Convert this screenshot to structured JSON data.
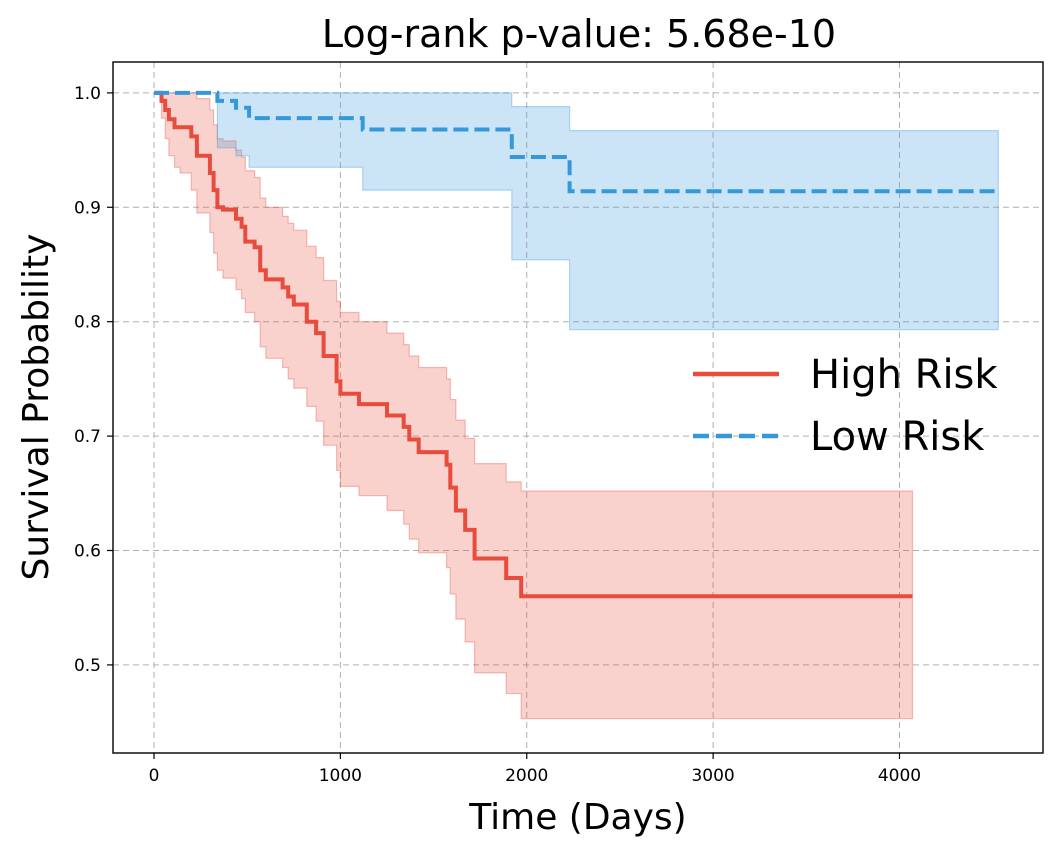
{
  "chart_data": {
    "type": "line",
    "title": "Log-rank p-value: 5.68e-10",
    "xlabel": "Time (Days)",
    "ylabel": "Survival Probability",
    "xlim": [
      -220,
      4770
    ],
    "ylim": [
      0.423,
      1.027
    ],
    "xticks": [
      0,
      1000,
      2000,
      3000,
      4000
    ],
    "yticks": [
      0.5,
      0.6,
      0.7,
      0.8,
      0.9,
      1.0
    ],
    "xtick_labels": [
      "0",
      "1000",
      "2000",
      "3000",
      "4000"
    ],
    "ytick_labels": [
      "0.5",
      "0.6",
      "0.7",
      "0.8",
      "0.9",
      "1.0"
    ],
    "grid": true,
    "legend_position": "center-right",
    "series": [
      {
        "name": "High Risk",
        "color": "#e74c3c",
        "line_style": "solid",
        "x": [
          0,
          40,
          60,
          80,
          110,
          140,
          200,
          230,
          300,
          320,
          340,
          370,
          440,
          470,
          490,
          540,
          570,
          600,
          690,
          720,
          750,
          820,
          870,
          910,
          980,
          1000,
          1100,
          1250,
          1340,
          1370,
          1420,
          1570,
          1590,
          1620,
          1670,
          1720,
          1890,
          1970,
          4070
        ],
        "y": [
          1.0,
          0.993,
          0.985,
          0.977,
          0.97,
          0.97,
          0.962,
          0.945,
          0.93,
          0.915,
          0.9,
          0.898,
          0.89,
          0.883,
          0.87,
          0.865,
          0.845,
          0.837,
          0.83,
          0.822,
          0.815,
          0.8,
          0.79,
          0.77,
          0.748,
          0.737,
          0.728,
          0.718,
          0.708,
          0.697,
          0.686,
          0.675,
          0.655,
          0.635,
          0.618,
          0.593,
          0.576,
          0.56,
          0.56
        ],
        "ci_lower": [
          1.0,
          0.978,
          0.96,
          0.945,
          0.935,
          0.93,
          0.915,
          0.895,
          0.878,
          0.86,
          0.845,
          0.838,
          0.828,
          0.82,
          0.808,
          0.8,
          0.778,
          0.768,
          0.76,
          0.75,
          0.742,
          0.726,
          0.713,
          0.692,
          0.67,
          0.656,
          0.648,
          0.635,
          0.623,
          0.61,
          0.598,
          0.585,
          0.562,
          0.54,
          0.52,
          0.493,
          0.475,
          0.453,
          0.453
        ],
        "ci_upper": [
          1.0,
          1.0,
          1.0,
          1.0,
          1.0,
          1.0,
          1.0,
          0.995,
          0.985,
          0.972,
          0.96,
          0.958,
          0.95,
          0.944,
          0.932,
          0.926,
          0.908,
          0.9,
          0.892,
          0.886,
          0.88,
          0.866,
          0.856,
          0.836,
          0.818,
          0.808,
          0.8,
          0.79,
          0.78,
          0.77,
          0.76,
          0.75,
          0.732,
          0.714,
          0.698,
          0.676,
          0.66,
          0.652,
          0.652
        ]
      },
      {
        "name": "Low Risk",
        "color": "#3498db",
        "line_style": "dashed",
        "x": [
          0,
          340,
          440,
          510,
          1120,
          1920,
          2230,
          4530
        ],
        "y": [
          1.0,
          0.993,
          0.987,
          0.978,
          0.968,
          0.944,
          0.914,
          0.914
        ],
        "ci_lower": [
          1.0,
          0.952,
          0.945,
          0.935,
          0.915,
          0.854,
          0.793,
          0.793
        ],
        "ci_upper": [
          1.0,
          1.0,
          1.0,
          1.0,
          1.0,
          0.988,
          0.967,
          0.967
        ]
      }
    ]
  }
}
